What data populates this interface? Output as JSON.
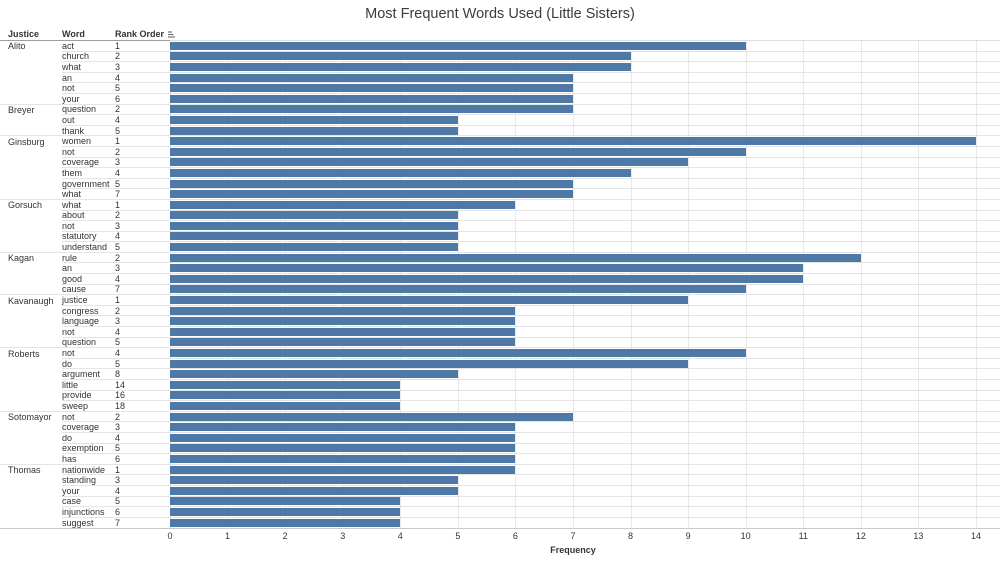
{
  "columns": {
    "justice": "Justice",
    "word": "Word",
    "rank": "Rank Order"
  },
  "colors": {
    "bar": "#4e79a7",
    "gridline": "#e9e9e9",
    "row_divider": "#e4e4e4",
    "header_divider_left": "#9e9e9e",
    "header_divider_right": "#dedede",
    "axis_line": "#c9c9c9",
    "title_text": "#3c3c3c",
    "body_text": "#333333"
  },
  "icons": {
    "rank_sort": "sort-icon"
  },
  "chart_data": {
    "type": "bar",
    "orientation": "horizontal",
    "title": "Most Frequent Words Used (Little Sisters)",
    "xlabel": "Frequency",
    "xlim": [
      0,
      14
    ],
    "x_ticks": [
      0,
      1,
      2,
      3,
      4,
      5,
      6,
      7,
      8,
      9,
      10,
      11,
      12,
      13,
      14
    ],
    "grid": true,
    "row_columns": [
      "Justice",
      "Word",
      "Rank Order",
      "Frequency"
    ],
    "rows": [
      {
        "justice": "Alito",
        "word": "act",
        "rank": 1,
        "frequency": 10
      },
      {
        "justice": "Alito",
        "word": "church",
        "rank": 2,
        "frequency": 8
      },
      {
        "justice": "Alito",
        "word": "what",
        "rank": 3,
        "frequency": 8
      },
      {
        "justice": "Alito",
        "word": "an",
        "rank": 4,
        "frequency": 7
      },
      {
        "justice": "Alito",
        "word": "not",
        "rank": 5,
        "frequency": 7
      },
      {
        "justice": "Alito",
        "word": "your",
        "rank": 6,
        "frequency": 7
      },
      {
        "justice": "Breyer",
        "word": "question",
        "rank": 2,
        "frequency": 7
      },
      {
        "justice": "Breyer",
        "word": "out",
        "rank": 4,
        "frequency": 5
      },
      {
        "justice": "Breyer",
        "word": "thank",
        "rank": 5,
        "frequency": 5
      },
      {
        "justice": "Ginsburg",
        "word": "women",
        "rank": 1,
        "frequency": 14
      },
      {
        "justice": "Ginsburg",
        "word": "not",
        "rank": 2,
        "frequency": 10
      },
      {
        "justice": "Ginsburg",
        "word": "coverage",
        "rank": 3,
        "frequency": 9
      },
      {
        "justice": "Ginsburg",
        "word": "them",
        "rank": 4,
        "frequency": 8
      },
      {
        "justice": "Ginsburg",
        "word": "government",
        "rank": 5,
        "frequency": 7
      },
      {
        "justice": "Ginsburg",
        "word": "what",
        "rank": 7,
        "frequency": 7
      },
      {
        "justice": "Gorsuch",
        "word": "what",
        "rank": 1,
        "frequency": 6
      },
      {
        "justice": "Gorsuch",
        "word": "about",
        "rank": 2,
        "frequency": 5
      },
      {
        "justice": "Gorsuch",
        "word": "not",
        "rank": 3,
        "frequency": 5
      },
      {
        "justice": "Gorsuch",
        "word": "statutory",
        "rank": 4,
        "frequency": 5
      },
      {
        "justice": "Gorsuch",
        "word": "understand",
        "rank": 5,
        "frequency": 5
      },
      {
        "justice": "Kagan",
        "word": "rule",
        "rank": 2,
        "frequency": 12
      },
      {
        "justice": "Kagan",
        "word": "an",
        "rank": 3,
        "frequency": 11
      },
      {
        "justice": "Kagan",
        "word": "good",
        "rank": 4,
        "frequency": 11
      },
      {
        "justice": "Kagan",
        "word": "cause",
        "rank": 7,
        "frequency": 10
      },
      {
        "justice": "Kavanaugh",
        "word": "justice",
        "rank": 1,
        "frequency": 9
      },
      {
        "justice": "Kavanaugh",
        "word": "congress",
        "rank": 2,
        "frequency": 6
      },
      {
        "justice": "Kavanaugh",
        "word": "language",
        "rank": 3,
        "frequency": 6
      },
      {
        "justice": "Kavanaugh",
        "word": "not",
        "rank": 4,
        "frequency": 6
      },
      {
        "justice": "Kavanaugh",
        "word": "question",
        "rank": 5,
        "frequency": 6
      },
      {
        "justice": "Roberts",
        "word": "not",
        "rank": 4,
        "frequency": 10
      },
      {
        "justice": "Roberts",
        "word": "do",
        "rank": 5,
        "frequency": 9
      },
      {
        "justice": "Roberts",
        "word": "argument",
        "rank": 8,
        "frequency": 5
      },
      {
        "justice": "Roberts",
        "word": "little",
        "rank": 14,
        "frequency": 4
      },
      {
        "justice": "Roberts",
        "word": "provide",
        "rank": 16,
        "frequency": 4
      },
      {
        "justice": "Roberts",
        "word": "sweep",
        "rank": 18,
        "frequency": 4
      },
      {
        "justice": "Sotomayor",
        "word": "not",
        "rank": 2,
        "frequency": 7
      },
      {
        "justice": "Sotomayor",
        "word": "coverage",
        "rank": 3,
        "frequency": 6
      },
      {
        "justice": "Sotomayor",
        "word": "do",
        "rank": 4,
        "frequency": 6
      },
      {
        "justice": "Sotomayor",
        "word": "exemption",
        "rank": 5,
        "frequency": 6
      },
      {
        "justice": "Sotomayor",
        "word": "has",
        "rank": 6,
        "frequency": 6
      },
      {
        "justice": "Thomas",
        "word": "nationwide",
        "rank": 1,
        "frequency": 6
      },
      {
        "justice": "Thomas",
        "word": "standing",
        "rank": 3,
        "frequency": 5
      },
      {
        "justice": "Thomas",
        "word": "your",
        "rank": 4,
        "frequency": 5
      },
      {
        "justice": "Thomas",
        "word": "case",
        "rank": 5,
        "frequency": 4
      },
      {
        "justice": "Thomas",
        "word": "injunctions",
        "rank": 6,
        "frequency": 4
      },
      {
        "justice": "Thomas",
        "word": "suggest",
        "rank": 7,
        "frequency": 4
      }
    ]
  }
}
